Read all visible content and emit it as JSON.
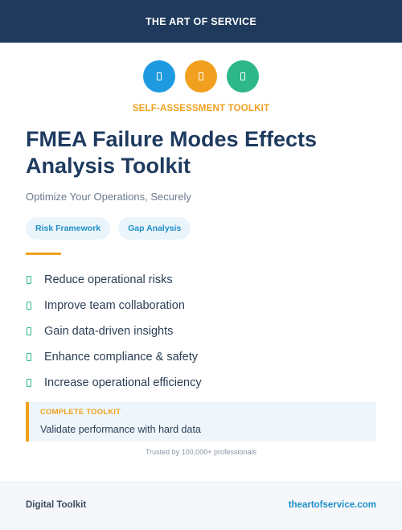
{
  "header": {
    "title": "THE ART OF SERVICE"
  },
  "icons": [
    {
      "name": "document-icon",
      "color": "#1e9be0"
    },
    {
      "name": "document-icon",
      "color": "#f0a01e"
    },
    {
      "name": "document-icon",
      "color": "#2eb88a"
    }
  ],
  "kicker": "SELF-ASSESSMENT TOOLKIT",
  "title": "FMEA Failure Modes Effects Analysis Toolkit",
  "subtitle": "Optimize Your Operations, Securely",
  "tags": [
    "Risk Framework",
    "Gap Analysis"
  ],
  "benefits": [
    "Reduce operational risks",
    "Improve team collaboration",
    "Gain data-driven insights",
    "Enhance compliance & safety",
    "Increase operational efficiency"
  ],
  "callout": {
    "label": "COMPLETE TOOLKIT",
    "text": "Validate performance with hard data"
  },
  "trust": "Trusted by 100,000+ professionals",
  "footer": {
    "left": "Digital Toolkit",
    "right": "theartofservice.com"
  },
  "colors": {
    "navy": "#1f3a5c",
    "accent": "#f0a01e",
    "blue": "#1e9be0",
    "green": "#2eb88a"
  }
}
